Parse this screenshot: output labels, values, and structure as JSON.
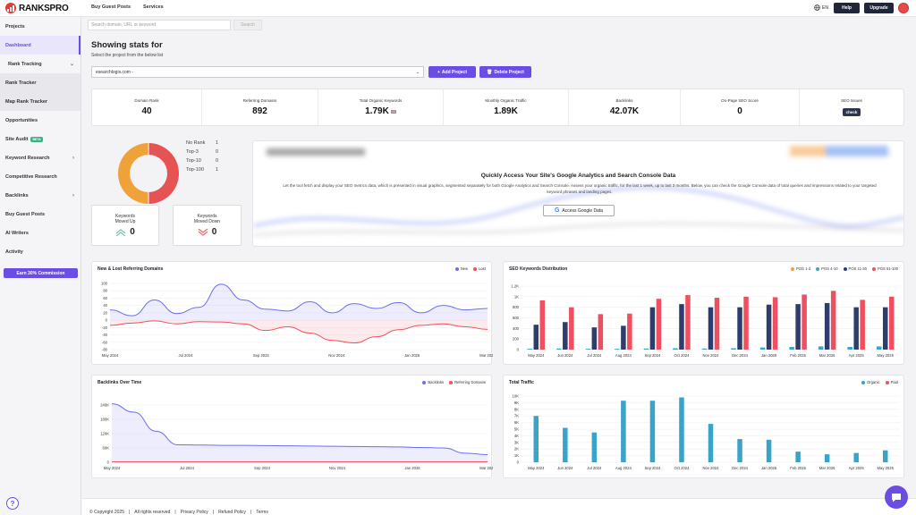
{
  "brand": {
    "name": "RANKSPRO"
  },
  "topnav": {
    "buy_guest_posts": "Buy Guest Posts",
    "services": "Services"
  },
  "header": {
    "lang": "EN",
    "help": "Help",
    "upgrade": "Upgrade"
  },
  "search": {
    "placeholder": "Search domain, URL or keyword",
    "button": "Search"
  },
  "sidebar": {
    "projects": "Projects",
    "dashboard": "Dashboard",
    "rank_tracking": "Rank Tracking",
    "rank_tracker": "Rank Tracker",
    "map_rank_tracker": "Map Rank Tracker",
    "opportunities": "Opportunities",
    "site_audit": "Site Audit",
    "site_audit_badge": "BETA",
    "keyword_research": "Keyword Research",
    "competitive_research": "Competitive Research",
    "backlinks": "Backlinks",
    "buy_guest_posts": "Buy Guest Posts",
    "ai_writers": "AI Writers",
    "activity": "Activity",
    "earn": "Earn 30% Commission"
  },
  "main": {
    "title": "Showing stats for",
    "subtitle": "Select the project from the below list",
    "project_value": "esearchlogix.com -",
    "add_project": "Add Project",
    "delete_project": "Delete Project"
  },
  "stats": [
    {
      "label": "Domain Rank",
      "value": "40"
    },
    {
      "label": "Referring Domains",
      "value": "892"
    },
    {
      "label": "Total Organic Keywords",
      "value": "1.79K"
    },
    {
      "label": "Monthly Organic Traffic",
      "value": "1.89K"
    },
    {
      "label": "Backlinks",
      "value": "42.07K"
    },
    {
      "label": "On-Page SEO Score",
      "value": "0"
    },
    {
      "label": "SEO Issues",
      "value": "check"
    }
  ],
  "rank_distribution": {
    "items": [
      {
        "label": "No Rank",
        "value": "1"
      },
      {
        "label": "Top-3",
        "value": "0"
      },
      {
        "label": "Top-10",
        "value": "0"
      },
      {
        "label": "Top-100",
        "value": "1"
      }
    ],
    "colors": {
      "no_rank": "#f0a23a",
      "top100": "#e65353"
    }
  },
  "moved_up": {
    "label_line1": "Keywords",
    "label_line2": "Moved Up",
    "value": "0"
  },
  "moved_down": {
    "label_line1": "Keywords",
    "label_line2": "Moved Down",
    "value": "0"
  },
  "google": {
    "title": "Quickly Access Your Site's Google Analytics and Search Console Data",
    "desc": "Let the tool fetch and display your SEO metrics data, which is presented in visual graphics, segmented separately for both Google Analytics and Search Console. Assess your organic traffic, for the last 1 week, up to last 3 months. Below, you can check the Google Console data of total queries and impressions related to your targeted keyword phrases and landing pages.",
    "button": "Access Google Data"
  },
  "footer": {
    "copyright": "© Copyright 2025",
    "rights": "All rights reserved",
    "privacy": "Privacy Policy",
    "refund": "Refund Policy",
    "terms": "Terms",
    "sep": "|"
  },
  "chart_data": [
    {
      "type": "area",
      "title": "New & Lost Referring Domains",
      "legend": [
        "New",
        "Lost"
      ],
      "colors": [
        "#6b6ef0",
        "#ef4f5f"
      ],
      "x_labels": [
        "May 2024",
        "Jul 2024",
        "Sep 2024",
        "Nov 2024",
        "Jan 2025",
        "Mar 2025"
      ],
      "y_ticks": [
        100,
        80,
        60,
        40,
        20,
        0,
        -20,
        -40,
        -60,
        -80
      ],
      "ylim": [
        -80,
        100
      ],
      "series": [
        {
          "name": "New",
          "values": [
            28,
            12,
            55,
            18,
            35,
            98,
            55,
            30,
            25,
            50,
            20,
            45,
            32,
            48,
            20,
            40,
            28,
            32
          ]
        },
        {
          "name": "Lost",
          "values": [
            -14,
            -8,
            -2,
            -10,
            -4,
            -5,
            -10,
            -28,
            -18,
            -35,
            -55,
            -62,
            -45,
            -26,
            -14,
            -10,
            -18,
            -25
          ]
        }
      ]
    },
    {
      "type": "bar",
      "title": "SEO Keywords Distribution",
      "legend": [
        "POS 1-3",
        "POS 4-10",
        "POS 11-30",
        "POS 51-100"
      ],
      "colors": [
        "#f0a23a",
        "#3aa3c9",
        "#2e3d6b",
        "#ef4f5f"
      ],
      "categories": [
        "May 2024",
        "Jun 2024",
        "Jul 2024",
        "Aug 2024",
        "Sep 2024",
        "Oct 2024",
        "Nov 2024",
        "Dec 2024",
        "Jan 2025",
        "Feb 2025",
        "Mar 2025",
        "Apr 2025",
        "May 2025"
      ],
      "y_ticks": [
        "1.2K",
        "1K",
        "800",
        "600",
        "400",
        "200",
        "0"
      ],
      "ylim": [
        0,
        1200
      ],
      "series": [
        {
          "name": "POS 1-3",
          "values": [
            0,
            0,
            0,
            0,
            0,
            0,
            0,
            0,
            0,
            0,
            0,
            0,
            0
          ]
        },
        {
          "name": "POS 4-10",
          "values": [
            15,
            20,
            15,
            15,
            20,
            25,
            20,
            25,
            40,
            50,
            60,
            50,
            60
          ]
        },
        {
          "name": "POS 11-30",
          "values": [
            470,
            520,
            420,
            450,
            800,
            860,
            800,
            800,
            850,
            860,
            880,
            800,
            800
          ]
        },
        {
          "name": "POS 51-100",
          "values": [
            930,
            800,
            670,
            680,
            960,
            1030,
            980,
            1000,
            990,
            1040,
            1110,
            940,
            1000
          ]
        }
      ]
    },
    {
      "type": "area",
      "title": "Backlinks Over Time",
      "legend": [
        "Backlinks",
        "Referring Domains"
      ],
      "colors": [
        "#6b6ef0",
        "#ef4f5f"
      ],
      "x_labels": [
        "May 2024",
        "Jul 2024",
        "Sep 2024",
        "Nov 2024",
        "Jan 2025",
        "Mar 2025"
      ],
      "y_ticks": [
        "240K",
        "180K",
        "120K",
        "60K",
        "0"
      ],
      "ylim": [
        0,
        240000
      ],
      "series": [
        {
          "name": "Backlinks",
          "values": [
            245000,
            210000,
            130000,
            73000,
            72000,
            71000,
            71000,
            70000,
            69000,
            68000,
            67000,
            66000,
            65000,
            64000,
            62000,
            60000,
            38000,
            32000
          ]
        },
        {
          "name": "Referring Domains",
          "values": [
            2000,
            2000,
            2000,
            2000,
            2000,
            2000,
            2000,
            2000,
            2000,
            2000,
            2000,
            2000,
            2000,
            2000,
            2000,
            2000,
            2000,
            2000
          ]
        }
      ]
    },
    {
      "type": "bar",
      "title": "Total Traffic",
      "legend": [
        "Organic",
        "Paid"
      ],
      "colors": [
        "#3aa3c9",
        "#ef4f5f"
      ],
      "categories": [
        "May 2024",
        "Jun 2024",
        "Jul 2024",
        "Aug 2024",
        "Sep 2024",
        "Oct 2024",
        "Nov 2024",
        "Dec 2024",
        "Jan 2025",
        "Feb 2025",
        "Mar 2025",
        "Apr 2025",
        "May 2025"
      ],
      "y_ticks": [
        "10K",
        "9K",
        "8K",
        "7K",
        "6K",
        "5K",
        "4K",
        "3K",
        "2K",
        "1K",
        "0"
      ],
      "ylim": [
        0,
        10000
      ],
      "series": [
        {
          "name": "Organic",
          "values": [
            7000,
            5200,
            4500,
            9300,
            9300,
            9800,
            5800,
            3500,
            3400,
            1600,
            1200,
            1400,
            1800
          ]
        },
        {
          "name": "Paid",
          "values": [
            0,
            0,
            0,
            0,
            0,
            0,
            0,
            0,
            0,
            0,
            0,
            0,
            0
          ]
        }
      ]
    }
  ]
}
